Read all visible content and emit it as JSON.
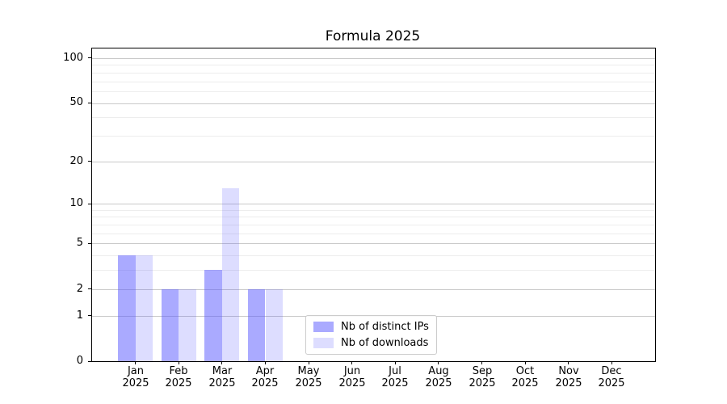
{
  "title": "Formula 2025",
  "chart_data": {
    "type": "bar",
    "title": "Formula 2025",
    "categories": [
      [
        "Jan",
        "2025"
      ],
      [
        "Feb",
        "2025"
      ],
      [
        "Mar",
        "2025"
      ],
      [
        "Apr",
        "2025"
      ],
      [
        "May",
        "2025"
      ],
      [
        "Jun",
        "2025"
      ],
      [
        "Jul",
        "2025"
      ],
      [
        "Aug",
        "2025"
      ],
      [
        "Sep",
        "2025"
      ],
      [
        "Oct",
        "2025"
      ],
      [
        "Nov",
        "2025"
      ],
      [
        "Dec",
        "2025"
      ]
    ],
    "series": [
      {
        "name": "Nb of distinct IPs",
        "key": "distinct-ips",
        "color": "rgba(85,85,255,0.5)",
        "values": [
          4,
          2,
          3,
          2,
          0,
          0,
          0,
          0,
          0,
          0,
          0,
          0
        ]
      },
      {
        "name": "Nb of downloads",
        "key": "downloads",
        "color": "rgba(85,85,255,0.2)",
        "values": [
          4,
          2,
          13,
          2,
          0,
          0,
          0,
          0,
          0,
          0,
          0,
          0
        ]
      }
    ],
    "y_axis": {
      "scale": "log1p",
      "major_ticks": [
        0,
        1,
        2,
        5,
        10,
        20,
        50,
        100
      ],
      "minor_gridlines": [
        3,
        4,
        6,
        7,
        8,
        9,
        30,
        40,
        60,
        70,
        80,
        90
      ],
      "ylim": [
        0,
        116
      ]
    },
    "xlabel": "",
    "ylabel": "",
    "grid": "horizontal",
    "legend_position": "lower center"
  },
  "colors": {
    "grid_major": "#c9c9c9",
    "grid_minor": "#ededed",
    "spine": "#000000",
    "tick": "#000000",
    "legend_border": "#cccccc",
    "background": "#ffffff",
    "text": "#000000"
  }
}
